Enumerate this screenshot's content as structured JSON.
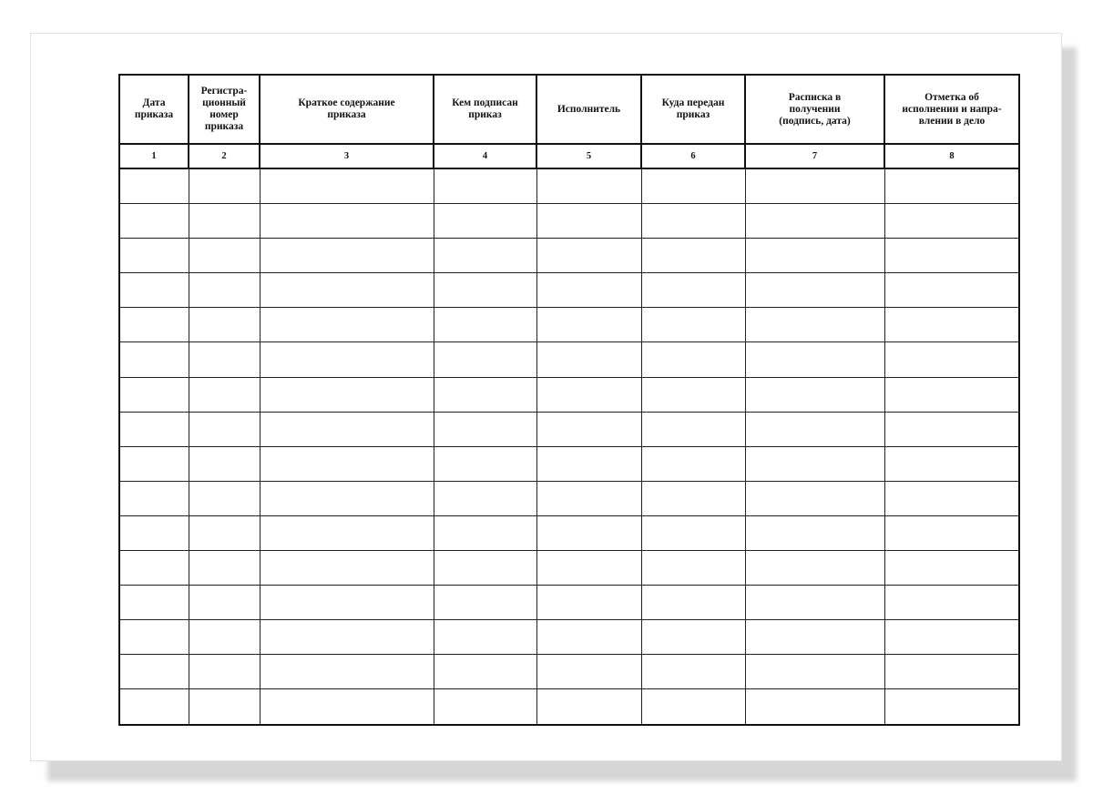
{
  "columns": [
    {
      "header": "Дата\nприказа",
      "number": "1"
    },
    {
      "header": "Регистра-\nционный\nномер\nприказа",
      "number": "2"
    },
    {
      "header": "Краткое содержание\nприказа",
      "number": "3"
    },
    {
      "header": "Кем подписан\nприказ",
      "number": "4"
    },
    {
      "header": "Исполнитель",
      "number": "5"
    },
    {
      "header": "Куда передан\nприказ",
      "number": "6"
    },
    {
      "header": "Расписка в\nполучении\n(подпись, дата)",
      "number": "7"
    },
    {
      "header": "Отметка об\nисполнении и напра-\nвлении в дело",
      "number": "8"
    }
  ],
  "empty_rows": 16
}
